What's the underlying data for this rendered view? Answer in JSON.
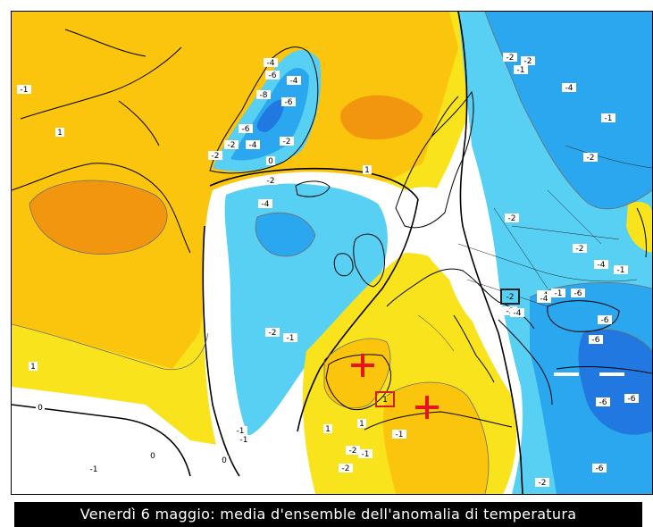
{
  "caption": "Venerdì 6 maggio: media d'ensemble dell'anomalia di temperatura",
  "colors": {
    "warm_light": "#f9e31c",
    "warm_mid": "#fbc40d",
    "warm_strong": "#f3960f",
    "neutral": "#ffffff",
    "cold_light": "#57d0f3",
    "cold_mid": "#2aa7ee",
    "cold_strong": "#2178e0",
    "coastline": "#000000",
    "marker_cross": "#e8131b",
    "marker_box": "#d41f1f"
  },
  "contour_labels": [
    "-1",
    "-4",
    "-6",
    "-4",
    "-8",
    "-6",
    "-6",
    "-2",
    "-4",
    "-2",
    "-2",
    "0",
    "1",
    "-2",
    "-4",
    "-2",
    "-2",
    "-1",
    "-4",
    "-2",
    "-2",
    "-4",
    "-1",
    "-2",
    "-4",
    "-1",
    "-2",
    "-4",
    "-4",
    "-6",
    "-1",
    "-6",
    "-6",
    "-6",
    "-6",
    "-6",
    "-2",
    "-2",
    "-1",
    "1",
    "1",
    "0",
    "0",
    "0",
    "-1",
    "-1",
    "-2",
    "1",
    "1",
    "-1",
    "-2",
    "-1",
    "-1"
  ],
  "markers": [
    {
      "type": "cross",
      "label": ""
    },
    {
      "type": "cross",
      "label": ""
    },
    {
      "type": "box",
      "label": "1"
    },
    {
      "type": "box",
      "label": "-2"
    }
  ]
}
